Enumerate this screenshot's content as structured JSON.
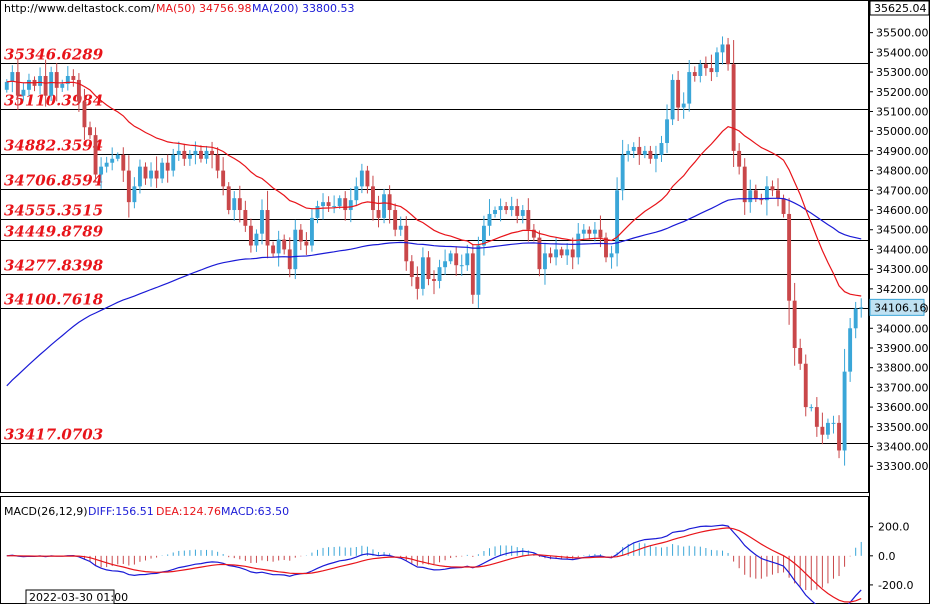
{
  "header": {
    "source": "http://www.deltastock.com/",
    "ma50_label": "MA(50)",
    "ma50_value": "34756.98",
    "ma200_label": "MA(200)",
    "ma200_value": "33800.53"
  },
  "macd_header": {
    "label": "MACD(26,12,9)",
    "diff": "DIFF:156.51",
    "dea": "DEA:124.76",
    "macd": "MACD:63.50"
  },
  "time_label": "2022-03-30 01:00",
  "top_price": "35625.04",
  "current_price": "34106.16",
  "colors": {
    "up_candle": "#3aa6d8",
    "down_candle": "#c9474a",
    "ma50": "#e8141a",
    "ma200": "#1a1ad6",
    "level_line": "#000000",
    "level_label": "#e8141a",
    "macd_diff": "#1a1ad6",
    "macd_dea": "#e8141a"
  },
  "chart_data": [
    {
      "type": "candlestick",
      "ylim": [
        33220,
        35625.04
      ],
      "yticks": [
        33300,
        33400,
        33500,
        33600,
        33700,
        33800,
        33900,
        34000,
        34100,
        34200,
        34300,
        34400,
        34500,
        34600,
        34700,
        34800,
        34900,
        35000,
        35100,
        35200,
        35300,
        35400,
        35500
      ],
      "levels": [
        35346.6289,
        35110.3984,
        34882.3594,
        34706.8594,
        34555.3515,
        34449.8789,
        34277.8398,
        34100.7618,
        33417.0703
      ],
      "level_labels": [
        "35346.6289",
        "35110.3984",
        "34882.3594",
        "34706.8594",
        "34555.3515",
        "34449.8789",
        "34277.8398",
        "34100.7618",
        "33417.0703"
      ],
      "close": [
        35250,
        35300,
        35180,
        35210,
        35260,
        35230,
        35280,
        35180,
        35300,
        35220,
        35240,
        35280,
        35260,
        35150,
        35020,
        34980,
        34780,
        34820,
        34840,
        34860,
        34880,
        34800,
        34640,
        34720,
        34820,
        34760,
        34800,
        34760,
        34840,
        34800,
        34880,
        34900,
        34860,
        34880,
        34900,
        34860,
        34900,
        34880,
        34800,
        34720,
        34600,
        34660,
        34600,
        34520,
        34420,
        34480,
        34600,
        34420,
        34380,
        34450,
        34400,
        34300,
        34500,
        34440,
        34420,
        34560,
        34620,
        34640,
        34620,
        34620,
        34660,
        34600,
        34650,
        34720,
        34800,
        34720,
        34600,
        34560,
        34680,
        34600,
        34500,
        34520,
        34340,
        34260,
        34200,
        34360,
        34250,
        34240,
        34310,
        34340,
        34380,
        34320,
        34320,
        34380,
        34170,
        34420,
        34520,
        34580,
        34600,
        34620,
        34600,
        34620,
        34570,
        34600,
        34500,
        34460,
        34300,
        34380,
        34360,
        34400,
        34370,
        34400,
        34360,
        34480,
        34500,
        34480,
        34500,
        34460,
        34360,
        34380,
        34700,
        34880,
        34900,
        34920,
        34880,
        34900,
        34860,
        34880,
        34940,
        35060,
        35260,
        35120,
        35140,
        35300,
        35280,
        35340,
        35320,
        35300,
        35400,
        35440,
        35340,
        34900,
        34820,
        34640,
        34700,
        34660,
        34650,
        34720,
        34700,
        34660,
        34580,
        34140,
        33900,
        33820,
        33600,
        33600,
        33500,
        33460,
        33520,
        33520,
        33380,
        33780,
        34000,
        34100,
        34106.16
      ],
      "x_time_label": "2022-03-30 01:00",
      "series": [
        {
          "name": "MA(50)",
          "last": 34756.98
        },
        {
          "name": "MA(200)",
          "last": 33800.53
        }
      ]
    },
    {
      "type": "macd",
      "ylim": [
        -290,
        260
      ],
      "yticks": [
        200.0,
        0.0,
        -200.0
      ],
      "ytick_labels": [
        "200.0",
        "0.0",
        "-200.0"
      ],
      "series": [
        {
          "name": "DIFF",
          "last": 156.51
        },
        {
          "name": "DEA",
          "last": 124.76
        },
        {
          "name": "MACD",
          "last": 63.5
        }
      ]
    }
  ]
}
